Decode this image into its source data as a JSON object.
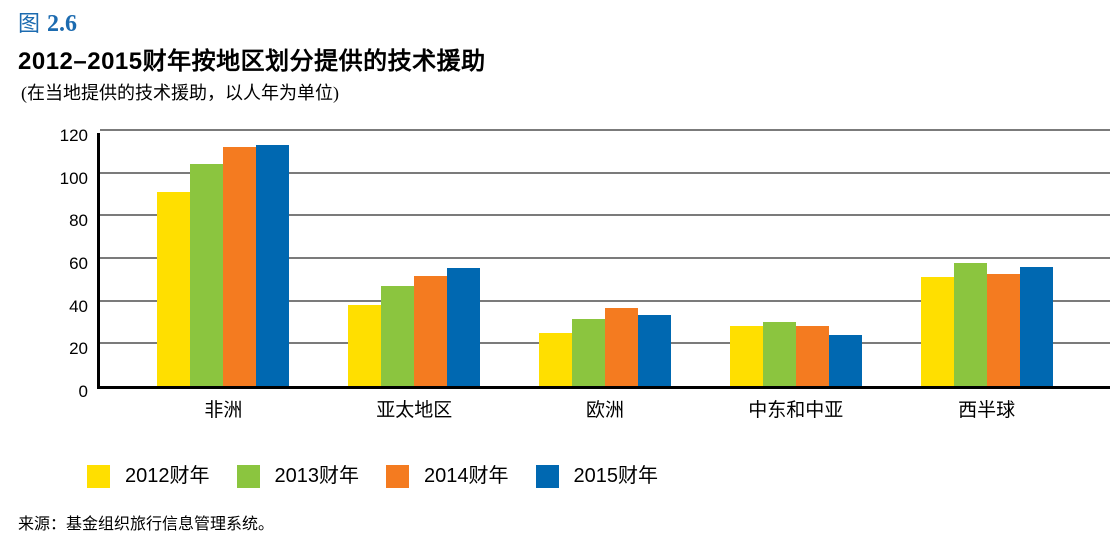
{
  "figure": {
    "label_prefix": "图",
    "label_number": "2.6",
    "title": "2012–2015财年按地区划分提供的技术援助",
    "subtitle": "(在当地提供的技术援助，以人年为单位)",
    "source": "来源：基金组织旅行信息管理系统。"
  },
  "colors": {
    "figure_label_blue": "#1c6bb0",
    "gridline_gray": "#7b7b7b",
    "axis_black": "#000000",
    "series_yellow": "#ffdf00",
    "series_green": "#8bc53f",
    "series_orange": "#f47b20",
    "series_blue": "#0068b1"
  },
  "chart_data": {
    "type": "bar",
    "title": "2012–2015财年按地区划分提供的技术援助",
    "subtitle": "(在当地提供的技术援助，以人年为单位)",
    "xlabel": "",
    "ylabel": "",
    "ylim": [
      0,
      120
    ],
    "yticks": [
      0,
      20,
      40,
      60,
      80,
      100,
      120
    ],
    "grid": true,
    "legend_position": "bottom",
    "categories": [
      "非洲",
      "亚太地区",
      "欧洲",
      "中东和中亚",
      "西半球"
    ],
    "category_slugs": [
      "africa",
      "asia-pacific",
      "europe",
      "middle-east-central-asia",
      "western-hemisphere"
    ],
    "series": [
      {
        "name": "2012财年",
        "slug": "fy2012",
        "color": "#ffdf00",
        "values": [
          91,
          38,
          25,
          28,
          51
        ]
      },
      {
        "name": "2013财年",
        "slug": "fy2013",
        "color": "#8bc53f",
        "values": [
          104,
          47,
          31.5,
          30,
          57.5
        ]
      },
      {
        "name": "2014财年",
        "slug": "fy2014",
        "color": "#f47b20",
        "values": [
          112,
          51.5,
          36.5,
          28,
          52.5
        ]
      },
      {
        "name": "2015财年",
        "slug": "fy2015",
        "color": "#0068b1",
        "values": [
          113,
          55.5,
          33.5,
          24,
          56
        ]
      }
    ]
  }
}
